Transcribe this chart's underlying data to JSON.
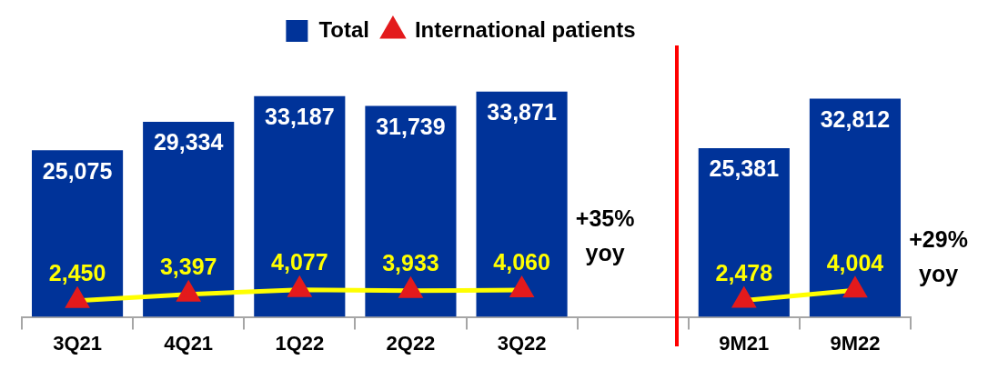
{
  "chart_data": {
    "type": "bar",
    "categories": [
      "3Q21",
      "4Q21",
      "1Q22",
      "2Q22",
      "3Q22",
      null,
      "9M21",
      "9M22"
    ],
    "series": [
      {
        "name": "Total",
        "color": "#003399",
        "values": [
          25075,
          29334,
          33187,
          31739,
          33871,
          null,
          25381,
          32812
        ],
        "value_labels": [
          "25,075",
          "29,334",
          "33,187",
          "31,739",
          "33,871",
          null,
          "25,381",
          "32,812"
        ]
      },
      {
        "name": "International patients",
        "type": "line",
        "color": "#ffff00",
        "colors": [
          "#e31a1c",
          "#e31a1c",
          "#e31a1c",
          "#e31a1c",
          "#e31a1c",
          null,
          "#e31a1c",
          "#e31a1c"
        ],
        "values": [
          2450,
          3397,
          4077,
          3933,
          4060,
          null,
          2478,
          4004
        ],
        "value_labels": [
          "2,450",
          "3,397",
          "4,077",
          "3,933",
          "4,060",
          null,
          "2,478",
          "4,004"
        ]
      }
    ],
    "tick_labels": "x",
    "legend": "top",
    "marker": "triangle",
    "annotations": [
      "+35% yoy",
      "+29% yoy"
    ]
  }
}
